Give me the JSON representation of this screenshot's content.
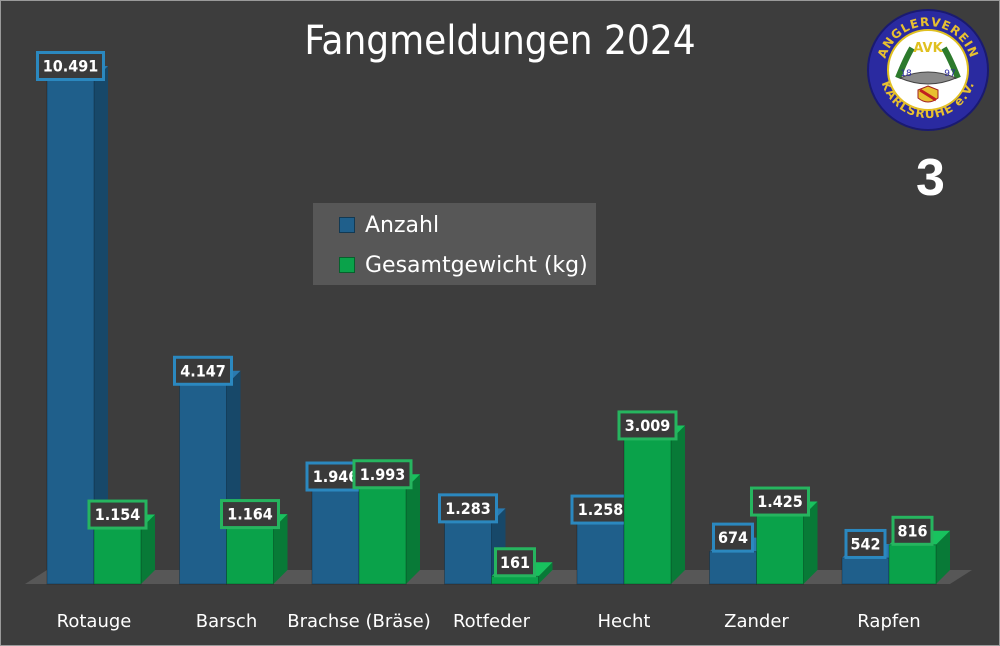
{
  "title": "Fangmeldungen 2024",
  "page_number": "3",
  "logo": {
    "text_top": "ANGLERVEREIN",
    "text_bottom": "KARLSRUHE e.V.",
    "initials": "AVK",
    "year_left": "18",
    "year_right": "97"
  },
  "colors": {
    "background": "#3d3d3d",
    "anzahl": "#1f5f8b",
    "gewicht": "#0aa24a"
  },
  "chart_data": {
    "type": "bar",
    "title": "Fangmeldungen 2024",
    "categories": [
      "Rotauge",
      "Barsch",
      "Brachse (Bräse)",
      "Rotfeder",
      "Hecht",
      "Zander",
      "Rapfen"
    ],
    "series": [
      {
        "name": "Anzahl",
        "values": [
          10491,
          4147,
          1946,
          1283,
          1258,
          674,
          542
        ],
        "labels": [
          "10.491",
          "4.147",
          "1.946",
          "1.283",
          "1.258",
          "674",
          "542"
        ]
      },
      {
        "name": "Gesamtgewicht (kg)",
        "values": [
          1154,
          1164,
          1993,
          161,
          3009,
          1425,
          816
        ],
        "labels": [
          "1.154",
          "1.164",
          "1.993",
          "161",
          "3.009",
          "1.425",
          "816"
        ]
      }
    ],
    "xlabel": "",
    "ylabel": "",
    "ylim": [
      0,
      10491
    ],
    "grid": false,
    "legend_position": "center"
  }
}
